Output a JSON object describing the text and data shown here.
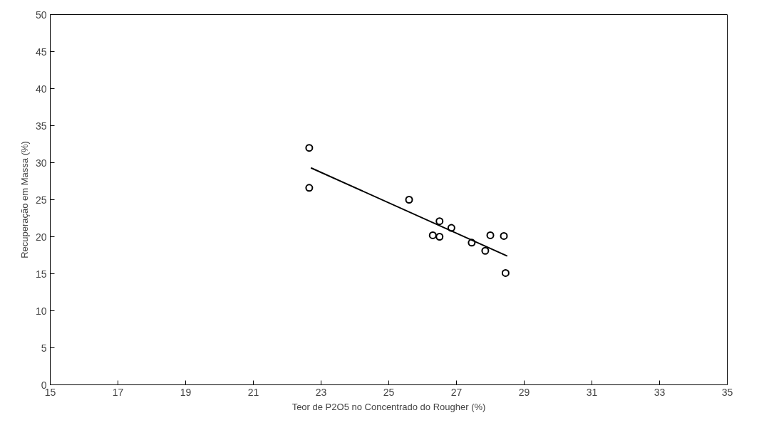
{
  "chart_data": {
    "type": "scatter",
    "xlabel": "Teor de P2O5 no Concentrado do Rougher (%)",
    "ylabel": "Recuperação em Massa (%)",
    "xlim": [
      15,
      35
    ],
    "xticks": [
      15,
      17,
      19,
      21,
      23,
      25,
      27,
      29,
      31,
      33,
      35
    ],
    "ylim": [
      0,
      50
    ],
    "yticks": [
      0,
      5,
      10,
      15,
      20,
      25,
      30,
      35,
      40,
      45,
      50
    ],
    "grid": false,
    "series": [
      {
        "color": "#000000",
        "marker": "circle",
        "x": [
          22.65,
          22.65,
          25.6,
          26.5,
          26.3,
          26.5,
          26.85,
          27.45,
          28.0,
          27.85,
          28.4,
          28.45
        ],
        "values": [
          32.0,
          26.6,
          25.0,
          22.1,
          20.2,
          20.0,
          21.2,
          19.2,
          20.2,
          18.1,
          20.1,
          15.1
        ]
      },
      {
        "type": "line",
        "color": "#000000",
        "x": [
          22.7,
          28.5
        ],
        "values": [
          29.3,
          17.4
        ]
      }
    ]
  }
}
